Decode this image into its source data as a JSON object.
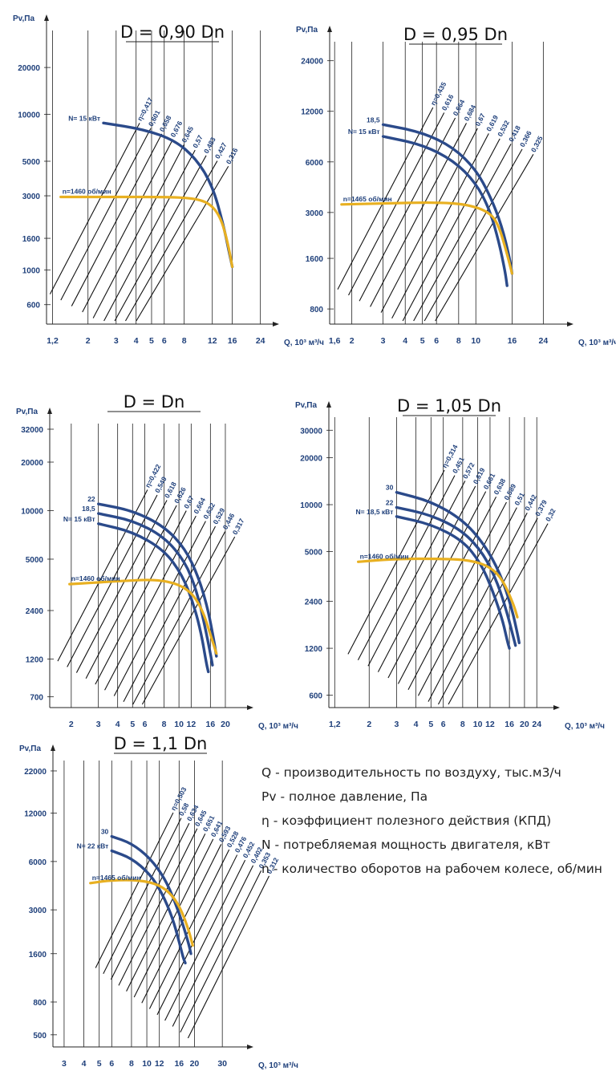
{
  "chart_data": [
    {
      "type": "line",
      "title": "D = 0,90 Dn",
      "ylabel": "Pv,Па",
      "xlabel": "Q, 10³ м³/ч",
      "x_ticks": [
        "1,2",
        "2",
        "3",
        "4",
        "5",
        "6",
        "8",
        "12",
        "16",
        "24"
      ],
      "y_ticks": [
        "20000",
        "10000",
        "5000",
        "3000",
        "1600",
        "1000",
        "600"
      ],
      "xlim": [
        1.1,
        28
      ],
      "ylim": [
        450,
        38000
      ],
      "speed_label": "n=1460 об/мин",
      "power_labels": [
        "N= 15 кВт"
      ],
      "efficiency_labels": [
        "η=0,417",
        "0,601",
        "0,658",
        "0,676",
        "0,645",
        "0,57",
        "0,483",
        "0,427",
        "0,316"
      ],
      "series": [
        {
          "name": "N= 15 кВт",
          "x": [
            2.5,
            4.5,
            7,
            9.5,
            12,
            14,
            15.3,
            16
          ],
          "y": [
            8800,
            8000,
            6800,
            5200,
            3500,
            2000,
            1300,
            1050
          ]
        },
        {
          "name": "n=1460 об/мин",
          "x": [
            1.35,
            3,
            6,
            9,
            11.5,
            13.5,
            15,
            16
          ],
          "y": [
            2950,
            2950,
            2950,
            2900,
            2700,
            2200,
            1500,
            1050
          ]
        }
      ]
    },
    {
      "type": "line",
      "title": "D = 0,95 Dn",
      "ylabel": "Pv,Па",
      "xlabel": "Q, 10³ м³/ч",
      "x_ticks": [
        "1,6",
        "2",
        "3",
        "4",
        "5",
        "6",
        "8",
        "10",
        "16",
        "24"
      ],
      "y_ticks": [
        "24000",
        "12000",
        "6000",
        "3000",
        "1600",
        "800"
      ],
      "xlim": [
        1.5,
        32
      ],
      "ylim": [
        650,
        34000
      ],
      "speed_label": "n=1465 об/мин",
      "power_labels": [
        "18,5",
        "N= 15 кВт"
      ],
      "efficiency_labels": [
        "η=0,435",
        "0,616",
        "0,664",
        "0,684",
        "0,67",
        "0,619",
        "0,532",
        "0,418",
        "0,366",
        "0,325"
      ],
      "series": [
        {
          "name": "18,5",
          "x": [
            3,
            5,
            7.5,
            10,
            12,
            14,
            15.5,
            16
          ],
          "y": [
            10000,
            9000,
            7300,
            5400,
            3800,
            2500,
            1600,
            1300
          ]
        },
        {
          "name": "N= 15 кВт",
          "x": [
            3,
            5,
            7.5,
            10,
            12,
            13.5,
            14.6,
            15
          ],
          "y": [
            8500,
            7600,
            6100,
            4500,
            3100,
            2000,
            1350,
            1100
          ]
        },
        {
          "name": "n=1465 об/мин",
          "x": [
            1.75,
            3,
            6,
            9,
            12,
            13.5,
            15,
            16
          ],
          "y": [
            3350,
            3400,
            3450,
            3350,
            3000,
            2500,
            1700,
            1300
          ]
        }
      ]
    },
    {
      "type": "line",
      "title": "D = Dn",
      "ylabel": "Pv,Па",
      "xlabel": "Q, 10³ м³/ч",
      "x_ticks": [
        "2",
        "3",
        "4",
        "5",
        "6",
        "8",
        "10",
        "12",
        "16",
        "20"
      ],
      "y_ticks": [
        "32000",
        "20000",
        "10000",
        "5000",
        "2400",
        "1200",
        "700"
      ],
      "xlim": [
        1.45,
        27
      ],
      "ylim": [
        600,
        38000
      ],
      "speed_label": "n=1460 об/мин",
      "power_labels": [
        "22",
        "18,5",
        "N= 15 кВт"
      ],
      "efficiency_labels": [
        "η=0,422",
        "0,549",
        "0,618",
        "0,626",
        "0,67",
        "0,664",
        "0,632",
        "0,529",
        "0,446",
        "0,317"
      ],
      "series": [
        {
          "name": "22",
          "x": [
            3,
            5,
            8,
            11,
            13.5,
            15.5,
            17,
            17.5
          ],
          "y": [
            11000,
            10000,
            8000,
            5800,
            3800,
            2400,
            1500,
            1250
          ]
        },
        {
          "name": "18,5",
          "x": [
            3,
            5,
            8,
            11,
            13,
            14.6,
            16,
            16.5
          ],
          "y": [
            9600,
            8700,
            6900,
            4800,
            3200,
            2000,
            1300,
            1100
          ]
        },
        {
          "name": "N= 15 кВт",
          "x": [
            3,
            5,
            8,
            10.5,
            12.5,
            14,
            15,
            15.5
          ],
          "y": [
            8300,
            7400,
            5700,
            4000,
            2600,
            1700,
            1150,
            1000
          ]
        },
        {
          "name": "n=1460 об/мин",
          "x": [
            1.95,
            4,
            7,
            10,
            12.5,
            14.5,
            16,
            17.5
          ],
          "y": [
            3500,
            3650,
            3750,
            3500,
            3000,
            2300,
            1700,
            1300
          ]
        }
      ]
    },
    {
      "type": "line",
      "title": "D = 1,05 Dn",
      "ylabel": "Pv,Па",
      "xlabel": "Q, 10³ м³/ч",
      "x_ticks": [
        "1,2",
        "2",
        "3",
        "4",
        "5",
        "6",
        "8",
        "10",
        "12",
        "16",
        "20",
        "24"
      ],
      "y_ticks": [
        "30000",
        "20000",
        "10000",
        "5000",
        "2400",
        "1200",
        "600"
      ],
      "xlim": [
        1.1,
        30
      ],
      "ylim": [
        500,
        40000
      ],
      "speed_label": "n=1460 об/мин",
      "power_labels": [
        "30",
        "22",
        "N= 18,5 кВт"
      ],
      "efficiency_labels": [
        "η=0,314",
        "0,451",
        "0,572",
        "0,619",
        "0,661",
        "0,638",
        "0,589",
        "0,51",
        "0,442",
        "0,379",
        "0,32"
      ],
      "series": [
        {
          "name": "30",
          "x": [
            3,
            5,
            8,
            11,
            14,
            16.5,
            18,
            18.5
          ],
          "y": [
            12000,
            10500,
            8000,
            5600,
            3600,
            2200,
            1500,
            1300
          ]
        },
        {
          "name": "22",
          "x": [
            3,
            5,
            8,
            11,
            13.5,
            15.5,
            17,
            17.5
          ],
          "y": [
            9600,
            8600,
            6800,
            4800,
            3100,
            2000,
            1400,
            1250
          ]
        },
        {
          "name": "N= 18,5 кВт",
          "x": [
            3,
            5,
            8,
            10.5,
            12.5,
            14.5,
            15.6,
            16
          ],
          "y": [
            8400,
            7500,
            5900,
            4200,
            2800,
            1800,
            1300,
            1200
          ]
        },
        {
          "name": "n=1460 об/мин",
          "x": [
            1.7,
            3,
            6,
            9,
            12,
            14.5,
            17,
            18
          ],
          "y": [
            4300,
            4500,
            4500,
            4400,
            4000,
            3300,
            2300,
            1900
          ]
        }
      ]
    },
    {
      "type": "line",
      "title": "D = 1,1 Dn",
      "ylabel": "Pv,Па",
      "xlabel": "Q, 10³ м³/ч",
      "x_ticks": [
        "3",
        "4",
        "5",
        "6",
        "8",
        "10",
        "12",
        "16",
        "20",
        "30"
      ],
      "y_ticks": [
        "22000",
        "12000",
        "6000",
        "3000",
        "1600",
        "800",
        "500"
      ],
      "xlim": [
        2.55,
        42
      ],
      "ylim": [
        420,
        28000
      ],
      "speed_label": "n=1465 об/мин",
      "power_labels": [
        "30",
        "N= 22 кВт"
      ],
      "efficiency_labels": [
        "η=0,503",
        "0,58",
        "0,634",
        "0,645",
        "0,651",
        "0,641",
        "0,593",
        "0,528",
        "0,476",
        "0,452",
        "0,402",
        "0,353",
        "0,312"
      ],
      "series": [
        {
          "name": "30",
          "x": [
            6,
            8,
            10.5,
            13,
            15,
            17,
            18.5,
            19
          ],
          "y": [
            8600,
            7800,
            6300,
            4700,
            3400,
            2400,
            1800,
            1600
          ]
        },
        {
          "name": "N= 22 кВт",
          "x": [
            6,
            8,
            10.5,
            12.5,
            14.5,
            16,
            17,
            17.5
          ],
          "y": [
            7000,
            6300,
            5000,
            3800,
            2700,
            1900,
            1500,
            1400
          ]
        },
        {
          "name": "n=1465 об/мин",
          "x": [
            4.4,
            6,
            9,
            12,
            14.5,
            16.5,
            18.5,
            19.5
          ],
          "y": [
            4400,
            4600,
            4600,
            4300,
            3700,
            3000,
            2200,
            1800
          ]
        }
      ]
    }
  ],
  "legend": {
    "q": "Q - производительность по воздуху, тыс.м3/ч",
    "pv": "Pv - полное давление, Па",
    "eta": "η - коэффициент полезного действия (КПД)",
    "n_power": "N - потребляемая мощность двигателя, кВт",
    "n_speed": "n - количество оборотов на рабочем колесе, об/мин"
  },
  "colors": {
    "power_curve": "#2b4a8a",
    "speed_curve": "#e8b021",
    "text": "#1e3f7a"
  }
}
